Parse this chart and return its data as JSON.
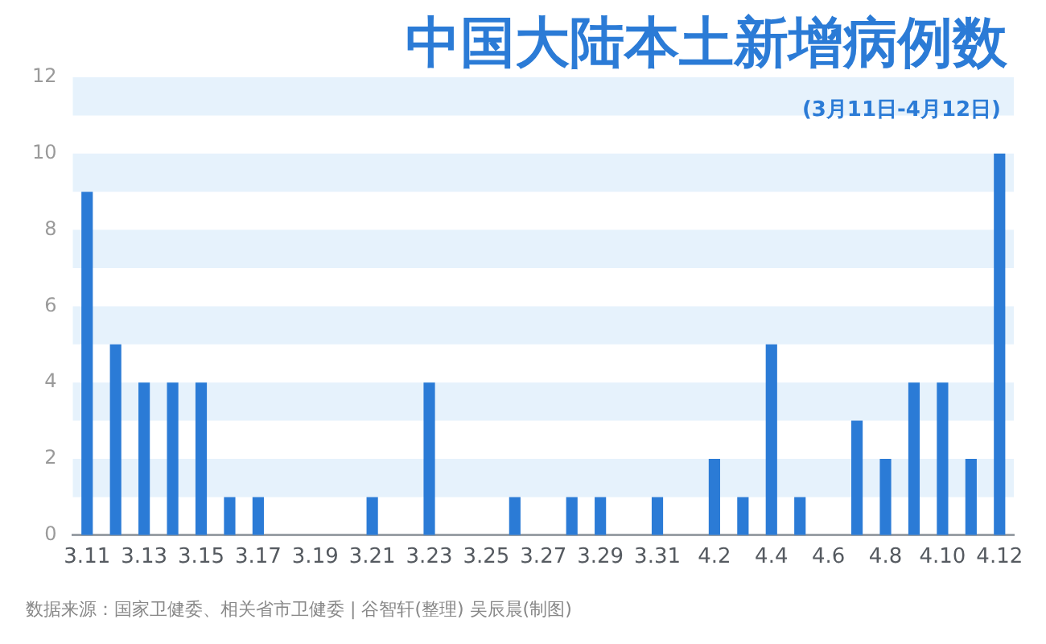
{
  "chart_data": {
    "type": "bar",
    "title": "中国大陆本土新增病例数",
    "subtitle": "(3月11日-4月12日)",
    "categories": [
      "3.11",
      null,
      "3.13",
      null,
      "3.15",
      null,
      "3.17",
      null,
      "3.19",
      null,
      "3.21",
      null,
      "3.23",
      null,
      "3.25",
      null,
      "3.27",
      null,
      "3.29",
      null,
      "3.31",
      null,
      "4.2",
      null,
      "4.4",
      null,
      "4.6",
      null,
      "4.8",
      null,
      "4.10",
      null,
      "4.12"
    ],
    "values": [
      9,
      5,
      4,
      4,
      4,
      1,
      1,
      0,
      0,
      0,
      1,
      0,
      4,
      0,
      0,
      1,
      0,
      1,
      1,
      0,
      1,
      0,
      2,
      1,
      5,
      1,
      0,
      3,
      2,
      4,
      4,
      2,
      10
    ],
    "color": "#2b7bd6",
    "ylim": [
      0,
      12
    ],
    "yticks": [
      0,
      2,
      4,
      6,
      8,
      10,
      12
    ],
    "grid": false,
    "bands": [
      {
        "axis": "y",
        "from": 11,
        "to": 12,
        "color": "#e6f2fc"
      },
      {
        "axis": "y",
        "from": 9,
        "to": 10,
        "color": "#e6f2fc"
      },
      {
        "axis": "y",
        "from": 7,
        "to": 8,
        "color": "#e6f2fc"
      },
      {
        "axis": "y",
        "from": 5,
        "to": 6,
        "color": "#e6f2fc"
      },
      {
        "axis": "y",
        "from": 3,
        "to": 4,
        "color": "#e6f2fc"
      },
      {
        "axis": "y",
        "from": 1,
        "to": 2,
        "color": "#e6f2fc"
      }
    ],
    "annotations": [
      "数据来源：国家卫健委、相关省市卫健委  |  谷智轩(整理)  吴辰晨(制图)"
    ]
  }
}
